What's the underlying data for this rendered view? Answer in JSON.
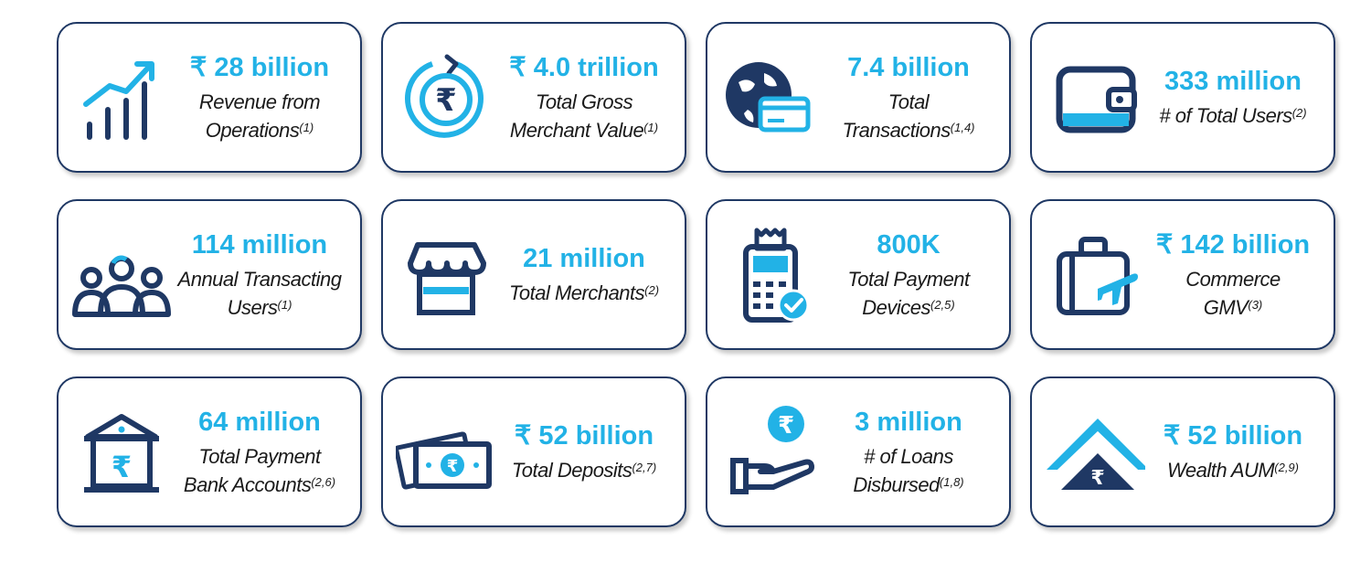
{
  "cards": [
    {
      "value": "₹ 28 billion",
      "line1": "Revenue from",
      "line2": "Operations",
      "sup": "(1)",
      "icon": "bar-growth-icon"
    },
    {
      "value": "₹ 4.0 trillion",
      "line1": "Total Gross",
      "line2": "Merchant Value",
      "sup": "(1)",
      "icon": "rupee-cycle-icon"
    },
    {
      "value": "7.4 billion",
      "line1": "Total",
      "line2": "Transactions",
      "sup": "(1,4)",
      "icon": "globe-card-icon"
    },
    {
      "value": "333 million",
      "line1": "# of Total Users",
      "line2": "",
      "sup": "(2)",
      "icon": "wallet-icon"
    },
    {
      "value": "114 million",
      "line1": "Annual Transacting",
      "line2": "Users",
      "sup": "(1)",
      "icon": "users-group-icon"
    },
    {
      "value": "21 million",
      "line1": "Total Merchants",
      "line2": "",
      "sup": "(2)",
      "icon": "storefront-icon"
    },
    {
      "value": "800K",
      "line1": "Total Payment",
      "line2": "Devices",
      "sup": "(2,5)",
      "icon": "payment-device-icon"
    },
    {
      "value": "₹ 142 billion",
      "line1": "Commerce",
      "line2": "GMV",
      "sup": "(3)",
      "icon": "travel-bag-icon"
    },
    {
      "value": "64 million",
      "line1": "Total Payment",
      "line2": "Bank Accounts",
      "sup": "(2,6)",
      "icon": "bank-icon"
    },
    {
      "value": "₹ 52 billion",
      "line1": "Total Deposits",
      "line2": "",
      "sup": "(2,7)",
      "icon": "banknotes-icon"
    },
    {
      "value": "3 million",
      "line1": "# of Loans",
      "line2": "Disbursed",
      "sup": "(1,8)",
      "icon": "hand-rupee-icon"
    },
    {
      "value": "₹ 52 billion",
      "line1": "Wealth AUM",
      "line2": "",
      "sup": "(2,9)",
      "icon": "wealth-pyramid-icon"
    }
  ],
  "colors": {
    "accent": "#22b2e6",
    "navy": "#1f3864",
    "text": "#1a1a1a"
  }
}
